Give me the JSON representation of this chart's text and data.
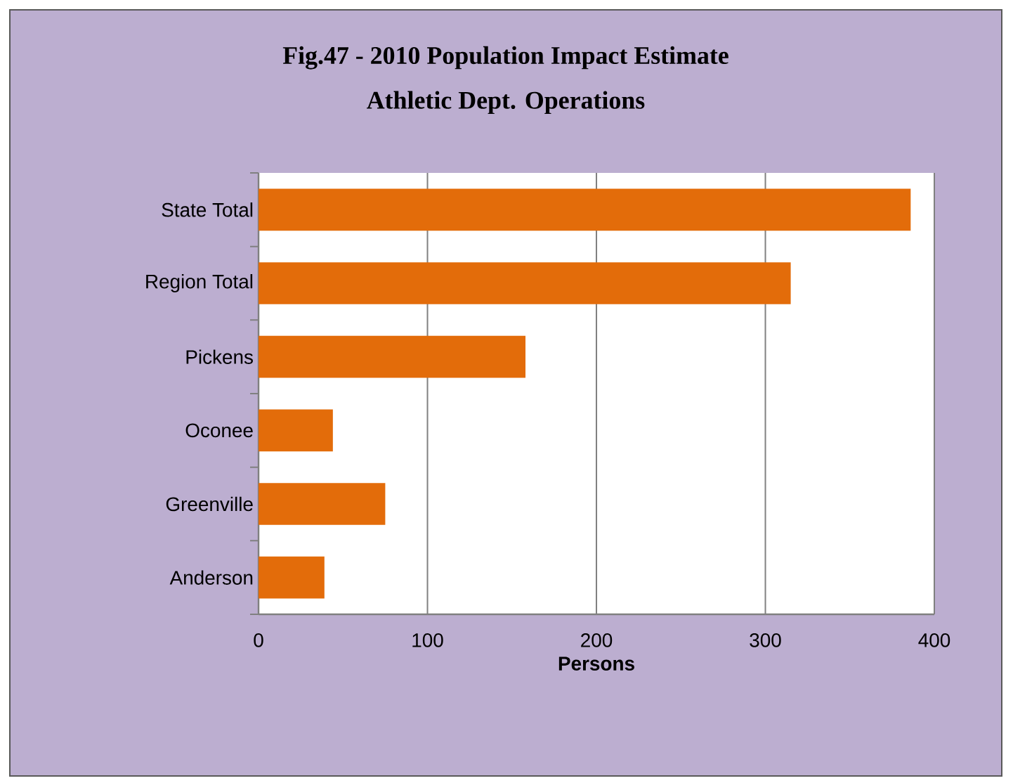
{
  "chart_data": {
    "type": "bar",
    "orientation": "horizontal",
    "title": "Fig.47 - 2010 Population Impact Estimate\nAthletic Dept. Operations",
    "categories": [
      "State Total",
      "Region Total",
      "Pickens",
      "Oconee",
      "Greenville",
      "Anderson"
    ],
    "values": [
      386,
      315,
      158,
      44,
      75,
      39
    ],
    "color": "#e36c0a",
    "xlabel": "Persons",
    "xlim": [
      0,
      400
    ],
    "xticks": [
      0,
      100,
      200,
      300,
      400
    ],
    "grid": "x"
  }
}
